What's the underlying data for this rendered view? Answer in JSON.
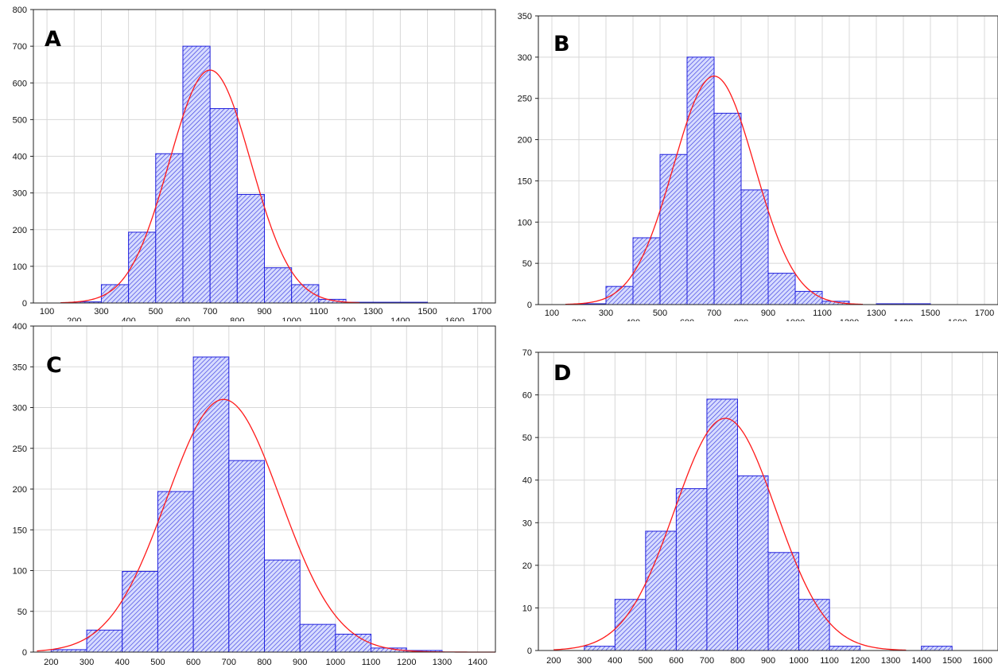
{
  "colors": {
    "bar_fill": "#d7dcff",
    "bar_hatch": "#3a3ae0",
    "bar_edge": "#2020dd",
    "curve": "#ff1a1a",
    "grid": "#d8d8d8",
    "background": "#ffffff"
  },
  "chart_data": [
    {
      "type": "bar",
      "panel_label": "A",
      "ylim": [
        0,
        800
      ],
      "yticks": [
        0,
        100,
        200,
        300,
        400,
        500,
        600,
        700,
        800
      ],
      "xlim": [
        50,
        1750
      ],
      "xticks_upper": [
        100,
        300,
        500,
        700,
        900,
        1100,
        1300,
        1500,
        1700
      ],
      "xticks_lower": [
        200,
        400,
        600,
        800,
        1000,
        1200,
        1400,
        1600
      ],
      "bin_edges": [
        200,
        300,
        400,
        500,
        600,
        700,
        800,
        900,
        1000,
        1100,
        1200,
        1300,
        1400,
        1500
      ],
      "values": [
        3,
        50,
        193,
        407,
        700,
        530,
        296,
        96,
        50,
        10,
        2,
        2,
        2
      ],
      "normal_curve": {
        "mean": 700,
        "sd": 150,
        "peak": 635,
        "from": 150,
        "to": 1250
      },
      "grid": true,
      "xlabel": "",
      "ylabel": ""
    },
    {
      "type": "bar",
      "panel_label": "B",
      "ylim": [
        0,
        350
      ],
      "yticks": [
        0,
        50,
        100,
        150,
        200,
        250,
        300,
        350
      ],
      "xlim": [
        50,
        1750
      ],
      "xticks_upper": [
        100,
        300,
        500,
        700,
        900,
        1100,
        1300,
        1500,
        1700
      ],
      "xticks_lower": [
        200,
        400,
        600,
        800,
        1000,
        1200,
        1400,
        1600
      ],
      "bin_edges": [
        200,
        300,
        400,
        500,
        600,
        700,
        800,
        900,
        1000,
        1100,
        1200,
        1300,
        1400,
        1500
      ],
      "values": [
        1,
        22,
        81,
        182,
        300,
        232,
        139,
        38,
        16,
        4,
        0,
        1,
        1
      ],
      "normal_curve": {
        "mean": 700,
        "sd": 150,
        "peak": 277,
        "from": 150,
        "to": 1250
      },
      "grid": true,
      "xlabel": "",
      "ylabel": ""
    },
    {
      "type": "bar",
      "panel_label": "C",
      "ylim": [
        0,
        400
      ],
      "yticks": [
        0,
        50,
        100,
        150,
        200,
        250,
        300,
        350,
        400
      ],
      "xlim": [
        150,
        1450
      ],
      "xticks": [
        200,
        300,
        400,
        500,
        600,
        700,
        800,
        900,
        1000,
        1100,
        1200,
        1300,
        1400
      ],
      "bin_edges": [
        200,
        300,
        400,
        500,
        600,
        700,
        800,
        900,
        1000,
        1100,
        1200,
        1300
      ],
      "values": [
        3,
        27,
        99,
        197,
        362,
        235,
        113,
        34,
        22,
        5,
        2
      ],
      "normal_curve": {
        "mean": 685,
        "sd": 160,
        "peak": 310,
        "from": 160,
        "to": 1450
      },
      "grid": true,
      "xlabel": "",
      "ylabel": ""
    },
    {
      "type": "bar",
      "panel_label": "D",
      "ylim": [
        0,
        70
      ],
      "yticks": [
        0,
        10,
        20,
        30,
        40,
        50,
        60,
        70
      ],
      "xlim": [
        150,
        1650
      ],
      "xticks": [
        200,
        300,
        400,
        500,
        600,
        700,
        800,
        900,
        1000,
        1100,
        1200,
        1300,
        1400,
        1500,
        1600
      ],
      "bin_edges": [
        300,
        400,
        500,
        600,
        700,
        800,
        900,
        1000,
        1100,
        1200,
        1300,
        1400,
        1500
      ],
      "values": [
        1,
        12,
        28,
        38,
        59,
        41,
        23,
        12,
        1,
        0,
        0,
        1
      ],
      "normal_curve": {
        "mean": 760,
        "sd": 165,
        "peak": 54.5,
        "from": 200,
        "to": 1350
      },
      "grid": true,
      "xlabel": "",
      "ylabel": ""
    }
  ]
}
